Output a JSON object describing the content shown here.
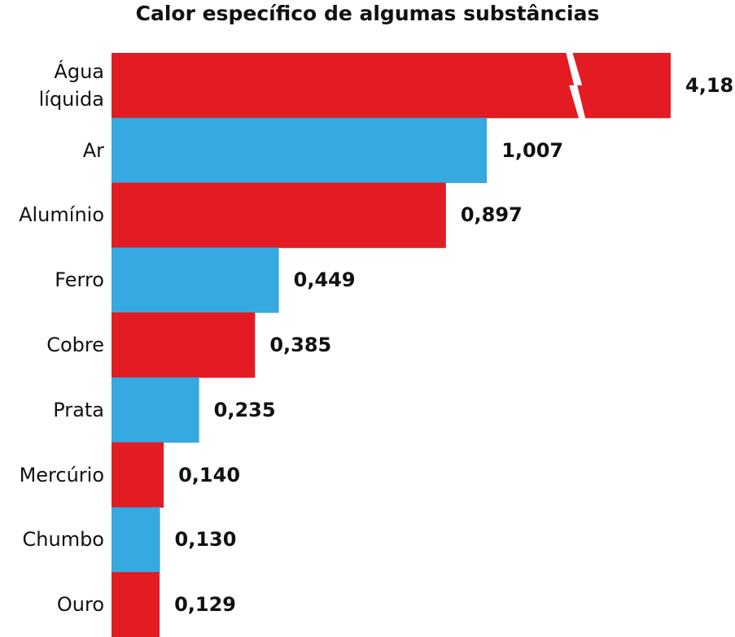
{
  "chart_data": {
    "type": "bar",
    "orientation": "horizontal",
    "title": "Calor específico de algumas substâncias",
    "categories": [
      "Água líquida",
      "Ar",
      "Alumínio",
      "Ferro",
      "Cobre",
      "Prata",
      "Mercúrio",
      "Chumbo",
      "Ouro"
    ],
    "values": [
      4.18,
      1.007,
      0.897,
      0.449,
      0.385,
      0.235,
      0.14,
      0.13,
      0.129
    ],
    "value_labels": [
      "4,18",
      "1,007",
      "0,897",
      "0,449",
      "0,385",
      "0,235",
      "0,140",
      "0,130",
      "0,129"
    ],
    "colors": [
      "#e31b23",
      "#35a9e0",
      "#e31b23",
      "#35a9e0",
      "#e31b23",
      "#35a9e0",
      "#e31b23",
      "#35a9e0",
      "#e31b23"
    ],
    "xlim": [
      0,
      1.5
    ]
  }
}
